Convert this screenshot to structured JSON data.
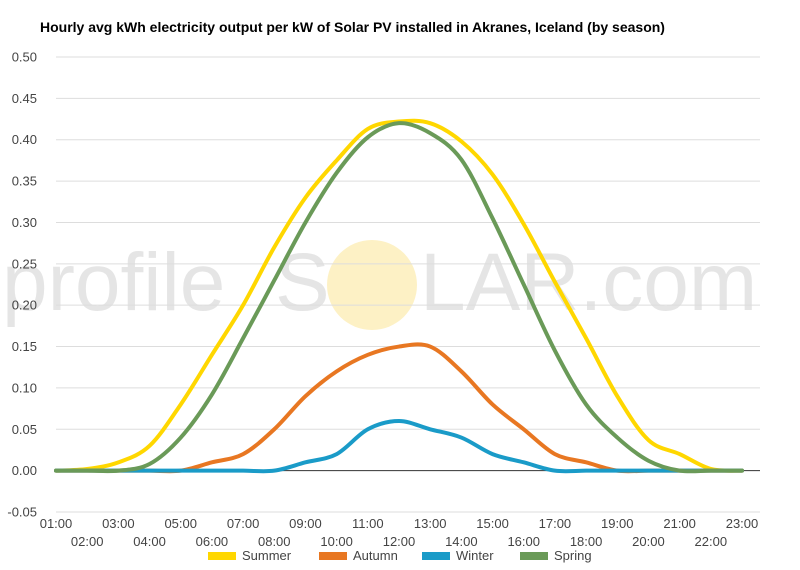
{
  "chart_data": {
    "type": "line",
    "title": "Hourly avg kWh electricity output per kW of Solar PV installed in Akranes, Iceland (by season)",
    "watermark": {
      "left": "profile",
      "right": "LAR.com",
      "middle": "S"
    },
    "x": [
      "01:00",
      "02:00",
      "03:00",
      "04:00",
      "05:00",
      "06:00",
      "07:00",
      "08:00",
      "09:00",
      "10:00",
      "11:00",
      "12:00",
      "13:00",
      "14:00",
      "15:00",
      "16:00",
      "17:00",
      "18:00",
      "19:00",
      "20:00",
      "21:00",
      "22:00",
      "23:00"
    ],
    "ylim": [
      -0.05,
      0.5
    ],
    "yticks": [
      "-0.05",
      "0.00",
      "0.05",
      "0.10",
      "0.15",
      "0.20",
      "0.25",
      "0.30",
      "0.35",
      "0.40",
      "0.45",
      "0.50"
    ],
    "grid": true,
    "legend_position": "bottom",
    "series": [
      {
        "name": "Summer",
        "color": "#FFD700",
        "values": [
          0.0,
          0.002,
          0.01,
          0.03,
          0.08,
          0.14,
          0.2,
          0.27,
          0.33,
          0.375,
          0.413,
          0.422,
          0.42,
          0.398,
          0.358,
          0.298,
          0.228,
          0.16,
          0.09,
          0.037,
          0.02,
          0.002,
          0.0
        ]
      },
      {
        "name": "Autumn",
        "color": "#E87722",
        "values": [
          0.0,
          0.0,
          0.0,
          0.0,
          0.0,
          0.01,
          0.02,
          0.05,
          0.09,
          0.12,
          0.14,
          0.15,
          0.15,
          0.12,
          0.08,
          0.05,
          0.02,
          0.01,
          0.0,
          0.0,
          0.0,
          0.0,
          0.0
        ]
      },
      {
        "name": "Winter",
        "color": "#1A9BC8",
        "values": [
          0.0,
          0.0,
          0.0,
          0.0,
          0.0,
          0.0,
          0.0,
          0.0,
          0.01,
          0.02,
          0.05,
          0.06,
          0.05,
          0.04,
          0.02,
          0.01,
          0.0,
          0.0,
          0.0,
          0.0,
          0.0,
          0.0,
          0.0
        ]
      },
      {
        "name": "Spring",
        "color": "#6A9A58",
        "values": [
          0.0,
          0.0,
          0.0,
          0.008,
          0.04,
          0.092,
          0.16,
          0.23,
          0.3,
          0.36,
          0.403,
          0.42,
          0.408,
          0.376,
          0.305,
          0.225,
          0.145,
          0.08,
          0.04,
          0.012,
          0.0,
          0.0,
          0.0
        ]
      }
    ]
  }
}
